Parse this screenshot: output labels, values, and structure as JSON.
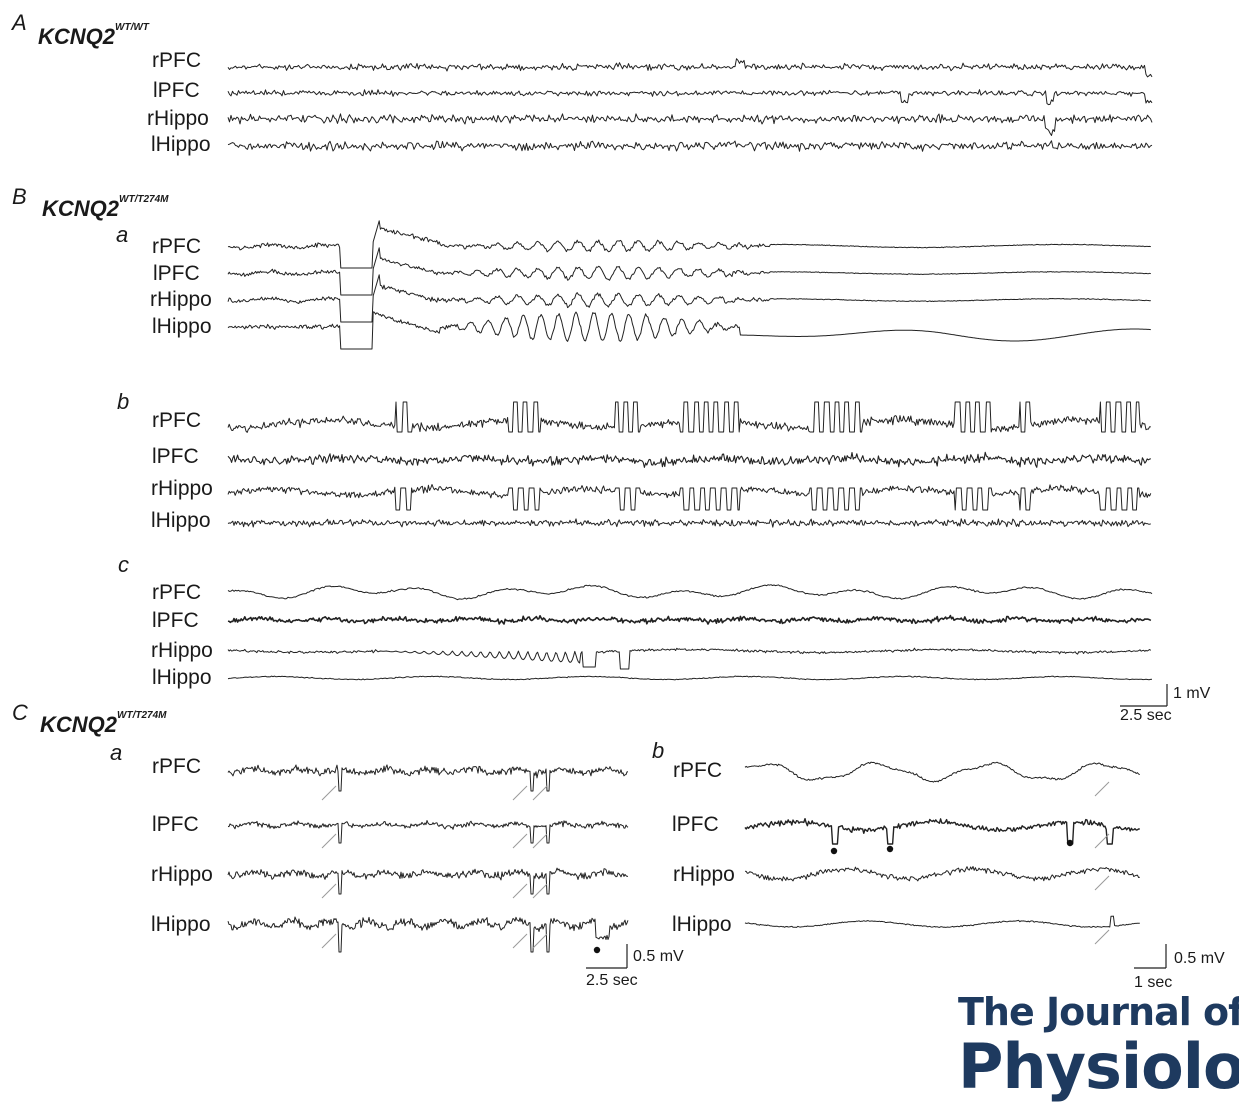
{
  "panels": {
    "A": {
      "letter": "A",
      "genotype": "KCNQ2",
      "genotype_sup": "WT/WT"
    },
    "B": {
      "letter": "B",
      "genotype": "KCNQ2",
      "genotype_sup": "WT/T274M",
      "sub_a": "a",
      "sub_b": "b",
      "sub_c": "c"
    },
    "C": {
      "letter": "C",
      "genotype": "KCNQ2",
      "genotype_sup": "WT/T274M",
      "sub_a": "a",
      "sub_b": "b"
    }
  },
  "channels": {
    "rpfc": "rPFC",
    "lpfc": "lPFC",
    "rhippo": "rHippo",
    "lhippo": "lHippo"
  },
  "scale_bars": {
    "B": {
      "amplitude": "1 mV",
      "time": "2.5 sec"
    },
    "Ca": {
      "amplitude": "0.5 mV",
      "time": "2.5 sec"
    },
    "Cb": {
      "amplitude": "0.5 mV",
      "time": "1 sec"
    }
  },
  "journal": {
    "line1": "The Journal of",
    "line2": "Physiolog"
  }
}
